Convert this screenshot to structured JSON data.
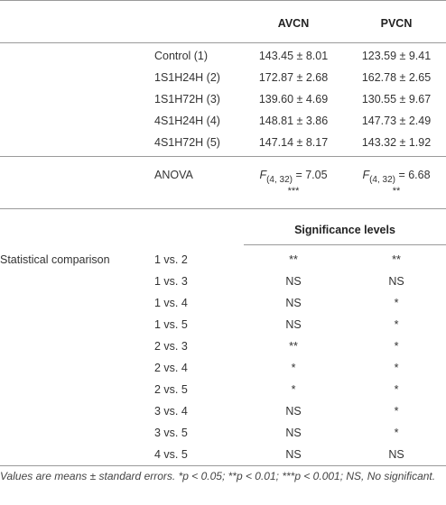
{
  "header": {
    "col_avcn": "AVCN",
    "col_pvcn": "PVCN"
  },
  "groups": [
    {
      "label": "Control (1)",
      "avcn": "143.45 ± 8.01",
      "pvcn": "123.59 ± 9.41"
    },
    {
      "label": "1S1H24H (2)",
      "avcn": "172.87 ± 2.68",
      "pvcn": "162.78 ± 2.65"
    },
    {
      "label": "1S1H72H (3)",
      "avcn": "139.60 ± 4.69",
      "pvcn": "130.55 ± 9.67"
    },
    {
      "label": "4S1H24H (4)",
      "avcn": "148.81 ± 3.86",
      "pvcn": "147.73 ± 2.49"
    },
    {
      "label": "4S1H72H (5)",
      "avcn": "147.14 ± 8.17",
      "pvcn": "143.32 ± 1.92"
    }
  ],
  "anova": {
    "label": "ANOVA",
    "avcn": {
      "f": "F",
      "sub": "(4, 32)",
      "value": " = 7.05",
      "stars": "***"
    },
    "pvcn": {
      "f": "F",
      "sub": "(4, 32)",
      "value": " = 6.68",
      "stars": "**"
    }
  },
  "significance_header": "Significance levels",
  "comparison_label": "Statistical comparison",
  "comparisons": [
    {
      "pair": "1 vs. 2",
      "avcn": "**",
      "pvcn": "**"
    },
    {
      "pair": "1 vs. 3",
      "avcn": "NS",
      "pvcn": "NS"
    },
    {
      "pair": "1 vs. 4",
      "avcn": "NS",
      "pvcn": "*"
    },
    {
      "pair": "1 vs. 5",
      "avcn": "NS",
      "pvcn": "*"
    },
    {
      "pair": "2 vs. 3",
      "avcn": "**",
      "pvcn": "*"
    },
    {
      "pair": "2 vs. 4",
      "avcn": "*",
      "pvcn": "*"
    },
    {
      "pair": "2 vs. 5",
      "avcn": "*",
      "pvcn": "*"
    },
    {
      "pair": "3 vs. 4",
      "avcn": "NS",
      "pvcn": "*"
    },
    {
      "pair": "3 vs. 5",
      "avcn": "NS",
      "pvcn": "*"
    },
    {
      "pair": "4 vs. 5",
      "avcn": "NS",
      "pvcn": "NS"
    }
  ],
  "footnote": "Values are means ± standard errors. *p < 0.05; **p < 0.01; ***p < 0.001; NS, No significant."
}
